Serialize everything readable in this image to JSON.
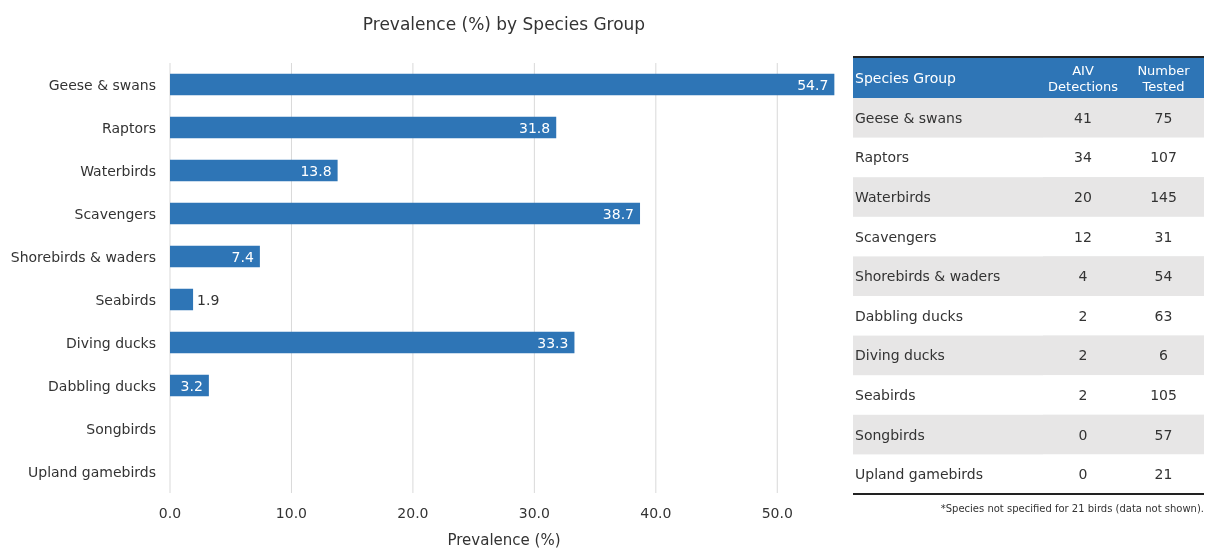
{
  "chart_data": [
    {
      "type": "bar",
      "orientation": "horizontal",
      "title": "Prevalence (%) by Species Group",
      "xlabel": "Prevalence (%)",
      "categories": [
        "Geese & swans",
        "Raptors",
        "Waterbirds",
        "Scavengers",
        "Shorebirds & waders",
        "Seabirds",
        "Diving ducks",
        "Dabbling ducks",
        "Songbirds",
        "Upland gamebirds"
      ],
      "values": [
        54.7,
        31.8,
        13.8,
        38.7,
        7.4,
        1.9,
        33.3,
        3.2,
        0,
        0
      ],
      "value_labels": [
        "54.7",
        "31.8",
        "13.8",
        "38.7",
        "7.4",
        "1.9",
        "33.3",
        "3.2",
        null,
        null
      ],
      "color": "#2e75b6",
      "xlim": [
        0,
        55
      ],
      "xticks": [
        {
          "value": 0,
          "label": "0.0"
        },
        {
          "value": 10,
          "label": "10.0"
        },
        {
          "value": 20,
          "label": "20.0"
        },
        {
          "value": 30,
          "label": "30.0"
        },
        {
          "value": 40,
          "label": "40.0"
        },
        {
          "value": 50,
          "label": "50.0"
        }
      ],
      "grid": "x"
    },
    {
      "type": "heatmap",
      "data_labels": true,
      "ylabel": "Species Group",
      "categories": [
        "AIV Detections",
        "Number Tested"
      ],
      "y_categories": [
        "Geese & swans",
        "Raptors",
        "Waterbirds",
        "Scavengers",
        "Shorebirds & waders",
        "Dabbling ducks",
        "Diving ducks",
        "Seabirds",
        "Songbirds",
        "Upland gamebirds"
      ],
      "cells": [
        [
          41,
          75
        ],
        [
          34,
          107
        ],
        [
          20,
          145
        ],
        [
          12,
          31
        ],
        [
          4,
          54
        ],
        [
          2,
          63
        ],
        [
          2,
          6
        ],
        [
          2,
          105
        ],
        [
          0,
          57
        ],
        [
          0,
          21
        ]
      ],
      "color": "#2e75b6",
      "annotations": [
        "*Species not specified for 21 birds (data not shown)."
      ]
    }
  ]
}
